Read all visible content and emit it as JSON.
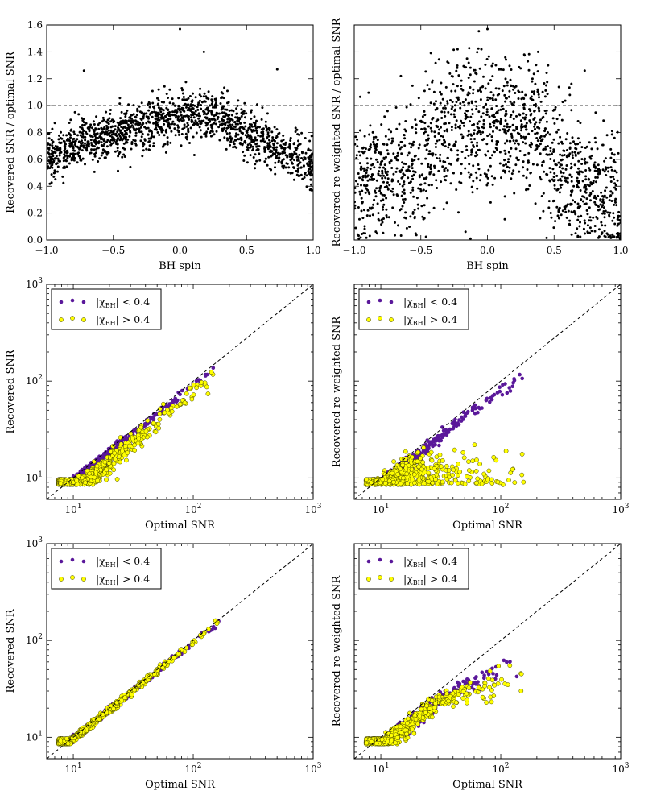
{
  "colors": {
    "purple": "#5a189a",
    "yellow": "#ffff00",
    "scatter_black": "#000000",
    "edge": "#444400"
  },
  "chart_data": [
    {
      "id": "p1",
      "type": "scatter",
      "xscale": "linear",
      "yscale": "linear",
      "xlim": [
        -1.0,
        1.0
      ],
      "ylim": [
        0.0,
        1.6
      ],
      "xticks": [
        -1.0,
        -0.5,
        0.0,
        0.5,
        1.0
      ],
      "xtick_labels": [
        "−1.0",
        "−0.5",
        "0.0",
        "0.5",
        "1.0"
      ],
      "yticks": [
        0.0,
        0.2,
        0.4,
        0.6,
        0.8,
        1.0,
        1.2,
        1.4,
        1.6
      ],
      "ytick_labels": [
        "0.0",
        "0.2",
        "0.4",
        "0.6",
        "0.8",
        "1.0",
        "1.2",
        "1.4",
        "1.6"
      ],
      "xlabel": "BH spin",
      "ylabel": "Recovered SNR / optimal SNR",
      "reference_line": {
        "type": "horizontal",
        "y": 1.0,
        "style": "dashed"
      },
      "scatter_model": {
        "n": 1500,
        "center": [
          [
            -1.0,
            0.62
          ],
          [
            -0.5,
            0.8
          ],
          [
            0.0,
            0.93
          ],
          [
            0.3,
            0.92
          ],
          [
            0.5,
            0.78
          ],
          [
            1.0,
            0.57
          ]
        ],
        "spread": 0.09,
        "outliers": [
          [
            -0.72,
            1.26
          ],
          [
            0.0,
            1.57
          ],
          [
            0.18,
            1.4
          ],
          [
            0.73,
            1.27
          ]
        ]
      },
      "legend": null
    },
    {
      "id": "p2",
      "type": "scatter",
      "xscale": "linear",
      "yscale": "linear",
      "xlim": [
        -1.0,
        1.0
      ],
      "ylim": [
        0.0,
        1.6
      ],
      "xticks": [
        -1.0,
        -0.5,
        0.0,
        0.5,
        1.0
      ],
      "xtick_labels": [
        "−1.0",
        "−0.5",
        "0.0",
        "0.5",
        "1.0"
      ],
      "yticks": [],
      "ytick_labels": [],
      "xlabel": "BH spin",
      "ylabel": "Recovered re-weighted SNR / optimal SNR",
      "reference_line": {
        "type": "horizontal",
        "y": 1.0,
        "style": "dashed"
      },
      "scatter_model": {
        "n": 1500,
        "center": [
          [
            -1.0,
            0.4
          ],
          [
            -0.5,
            0.55
          ],
          [
            -0.3,
            0.85
          ],
          [
            0.0,
            0.9
          ],
          [
            0.35,
            0.88
          ],
          [
            0.5,
            0.55
          ],
          [
            1.0,
            0.25
          ]
        ],
        "spread": 0.25,
        "outliers": [
          [
            -0.65,
            1.22
          ],
          [
            0.0,
            1.57
          ],
          [
            0.38,
            1.4
          ],
          [
            0.73,
            1.26
          ]
        ]
      },
      "legend": null
    },
    {
      "id": "p3",
      "type": "scatter",
      "xscale": "log",
      "yscale": "log",
      "xlim": [
        6,
        1000
      ],
      "ylim": [
        6,
        1000
      ],
      "xticks": [
        10,
        100,
        1000
      ],
      "xtick_labels": [
        [
          "10",
          "1"
        ],
        [
          "10",
          "2"
        ],
        [
          "10",
          "3"
        ]
      ],
      "yticks": [
        10,
        100,
        1000
      ],
      "ytick_labels": [
        [
          "10",
          "1"
        ],
        [
          "10",
          "2"
        ],
        [
          "10",
          "3"
        ]
      ],
      "xlabel": "Optimal SNR",
      "ylabel": "Recovered SNR",
      "reference_line": {
        "type": "diagonal",
        "style": "dashed"
      },
      "series": [
        {
          "name": "|χBH| < 0.4",
          "color": "purple",
          "ratio_model": "close",
          "n": 650
        },
        {
          "name": "|χBH| > 0.4",
          "color": "yellow",
          "ratio_model": "lower",
          "n": 650
        }
      ],
      "legend": {
        "position": "top-left",
        "entries": [
          {
            "prefix": "|χ",
            "sub": "BH",
            "suffix": "| < 0.4"
          },
          {
            "prefix": "|χ",
            "sub": "BH",
            "suffix": "| > 0.4"
          }
        ]
      }
    },
    {
      "id": "p4",
      "type": "scatter",
      "xscale": "log",
      "yscale": "log",
      "xlim": [
        6,
        1000
      ],
      "ylim": [
        6,
        1000
      ],
      "xticks": [
        10,
        100,
        1000
      ],
      "xtick_labels": [
        [
          "10",
          "1"
        ],
        [
          "10",
          "2"
        ],
        [
          "10",
          "3"
        ]
      ],
      "yticks": [],
      "ytick_labels": [],
      "xlabel": "Optimal SNR",
      "ylabel": "Recovered re-weighted SNR",
      "reference_line": {
        "type": "diagonal",
        "style": "dashed"
      },
      "series": [
        {
          "name": "|χBH| < 0.4",
          "color": "purple",
          "ratio_model": "reweighted_purple",
          "n": 650
        },
        {
          "name": "|χBH| > 0.4",
          "color": "yellow",
          "ratio_model": "reweighted_yellow",
          "n": 650
        }
      ],
      "legend": {
        "position": "top-left",
        "entries": [
          {
            "prefix": "|χ",
            "sub": "BH",
            "suffix": "| < 0.4"
          },
          {
            "prefix": "|χ",
            "sub": "BH",
            "suffix": "| > 0.4"
          }
        ]
      }
    },
    {
      "id": "p5",
      "type": "scatter",
      "xscale": "log",
      "yscale": "log",
      "xlim": [
        6,
        1000
      ],
      "ylim": [
        6,
        1000
      ],
      "xticks": [
        10,
        100,
        1000
      ],
      "xtick_labels": [
        [
          "10",
          "1"
        ],
        [
          "10",
          "2"
        ],
        [
          "10",
          "3"
        ]
      ],
      "yticks": [
        10,
        100,
        1000
      ],
      "ytick_labels": [
        [
          "10",
          "1"
        ],
        [
          "10",
          "2"
        ],
        [
          "10",
          "3"
        ]
      ],
      "xlabel": "Optimal SNR",
      "ylabel": "Recovered SNR",
      "reference_line": {
        "type": "diagonal",
        "style": "dashed"
      },
      "series": [
        {
          "name": "|χBH| < 0.4",
          "color": "purple",
          "ratio_model": "tight",
          "n": 600
        },
        {
          "name": "|χBH| > 0.4",
          "color": "yellow",
          "ratio_model": "tight",
          "n": 700
        }
      ],
      "legend": {
        "position": "top-left",
        "entries": [
          {
            "prefix": "|χ",
            "sub": "BH",
            "suffix": "| < 0.4"
          },
          {
            "prefix": "|χ",
            "sub": "BH",
            "suffix": "| > 0.4"
          }
        ]
      }
    },
    {
      "id": "p6",
      "type": "scatter",
      "xscale": "log",
      "yscale": "log",
      "xlim": [
        6,
        1000
      ],
      "ylim": [
        6,
        1000
      ],
      "xticks": [
        10,
        100,
        1000
      ],
      "xtick_labels": [
        [
          "10",
          "1"
        ],
        [
          "10",
          "2"
        ],
        [
          "10",
          "3"
        ]
      ],
      "yticks": [],
      "ytick_labels": [],
      "xlabel": "Optimal SNR",
      "ylabel": "Recovered re-weighted SNR",
      "reference_line": {
        "type": "diagonal",
        "style": "dashed"
      },
      "series": [
        {
          "name": "|χBH| < 0.4",
          "color": "purple",
          "ratio_model": "reweighted_tight",
          "n": 550
        },
        {
          "name": "|χBH| > 0.4",
          "color": "yellow",
          "ratio_model": "reweighted_tight_y",
          "n": 700
        }
      ],
      "legend": {
        "position": "top-left",
        "entries": [
          {
            "prefix": "|χ",
            "sub": "BH",
            "suffix": "| < 0.4"
          },
          {
            "prefix": "|χ",
            "sub": "BH",
            "suffix": "| > 0.4"
          }
        ]
      }
    }
  ]
}
